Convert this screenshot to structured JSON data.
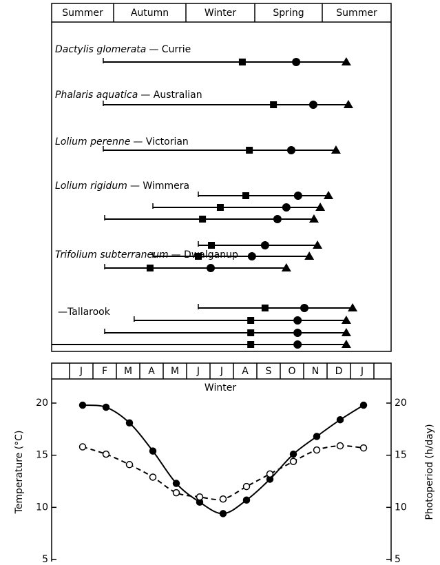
{
  "seasons": [
    "Summer",
    "Autumn",
    "Winter",
    "Spring",
    "Summer"
  ],
  "groups": [
    {
      "species": "Dactylis glomerata",
      "cultivar": "— Currie",
      "rows": [
        {
          "start": 1.44,
          "square": 7.38,
          "circle": 9.68,
          "triangle": 11.82
        }
      ]
    },
    {
      "species": "Phalaris aquatica",
      "cultivar": "— Australian",
      "rows": [
        {
          "start": 1.44,
          "square": 8.71,
          "circle": 10.41,
          "triangle": 11.91
        }
      ]
    },
    {
      "species": "Lolium perenne",
      "cultivar": "— Victorian",
      "rows": [
        {
          "start": 1.44,
          "square": 7.68,
          "circle": 9.47,
          "triangle": 11.38
        }
      ]
    },
    {
      "species": "Lolium rigidum",
      "cultivar": "— Wimmera",
      "rows": [
        {
          "start": 5.5,
          "square": 7.53,
          "circle": 9.76,
          "triangle": 11.06
        },
        {
          "start": 3.56,
          "square": 6.44,
          "circle": 9.26,
          "triangle": 10.71
        },
        {
          "start": 1.5,
          "square": 5.68,
          "circle": 8.88,
          "triangle": 10.44
        }
      ]
    },
    {
      "species": "Trifolium subterraneum",
      "cultivar": "— Dwalganup",
      "rows": [
        {
          "start": 5.5,
          "square": 6.06,
          "circle": 8.35,
          "triangle": 10.59
        },
        {
          "start": 3.56,
          "square": 5.5,
          "circle": 7.79,
          "triangle": 10.24
        },
        {
          "start": 1.5,
          "square": 3.44,
          "circle": 6.03,
          "triangle": 9.26
        }
      ]
    },
    {
      "cultivar": "—Tallarook",
      "rows": [
        {
          "start": 5.5,
          "square": 8.35,
          "circle": 10.03,
          "triangle": 12.09
        },
        {
          "start": 2.76,
          "square": 7.74,
          "circle": 9.74,
          "triangle": 11.82
        },
        {
          "start": 1.5,
          "square": 7.74,
          "circle": 9.74,
          "triangle": 11.82
        },
        {
          "start": null,
          "square": 7.74,
          "circle": 9.74,
          "triangle": 11.82
        }
      ]
    }
  ],
  "chart_data": {
    "type": "line",
    "categories": [
      "J",
      "F",
      "M",
      "A",
      "M",
      "J",
      "J",
      "A",
      "S",
      "O",
      "N",
      "D",
      "J"
    ],
    "annotation": "Winter",
    "y_label": "Temperature (°C)",
    "y2_label": "Photoperiod (h/day)",
    "ylim": [
      5,
      20
    ],
    "yticks": [
      5,
      10,
      15,
      20
    ],
    "y2lim": [
      5,
      20
    ],
    "y2ticks": [
      5,
      10,
      15,
      20
    ],
    "series": [
      {
        "name": "Temperature",
        "color": "#000000",
        "marker": "filled",
        "dashed": false,
        "values": [
          19.8,
          19.6,
          18.1,
          15.4,
          12.3,
          10.5,
          9.4,
          10.7,
          12.7,
          15.1,
          16.8,
          18.4,
          19.8
        ]
      },
      {
        "name": "Photoperiod",
        "color": "#000000",
        "marker": "open",
        "dashed": true,
        "axis": "y2",
        "values": [
          15.8,
          15.1,
          14.1,
          12.9,
          11.4,
          11.0,
          10.8,
          12.0,
          13.2,
          14.4,
          15.5,
          15.9,
          15.7
        ]
      }
    ]
  }
}
